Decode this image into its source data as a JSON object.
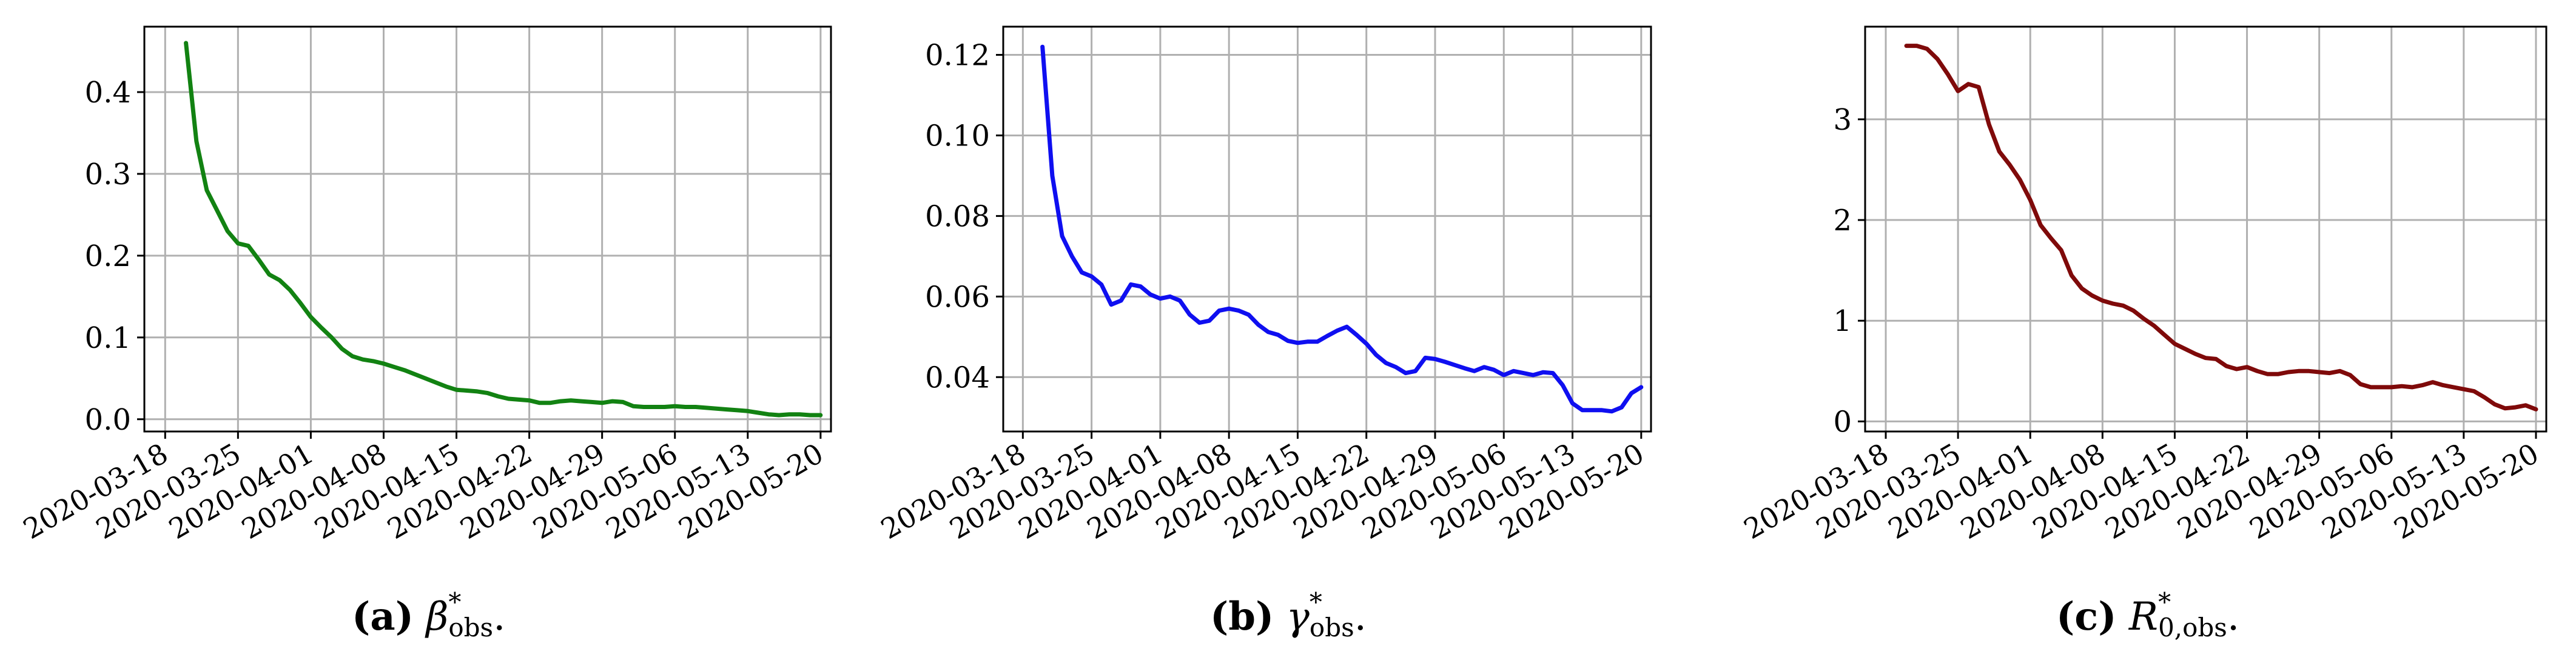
{
  "chart_data": [
    {
      "type": "line",
      "color": "#128212",
      "x_ticks": [
        "2020-03-18",
        "2020-03-25",
        "2020-04-01",
        "2020-04-08",
        "2020-04-15",
        "2020-04-22",
        "2020-04-29",
        "2020-05-06",
        "2020-05-13",
        "2020-05-20"
      ],
      "y_ticks": [
        "0.0",
        "0.1",
        "0.2",
        "0.3",
        "0.4"
      ],
      "ylim": [
        -0.015,
        0.48
      ],
      "xlim": [
        "2020-03-16",
        "2020-05-21"
      ],
      "grid": true,
      "caption": {
        "label": "(a)",
        "symbol": "β",
        "sup": "*",
        "sub": "obs",
        "end": "."
      },
      "series": [
        {
          "x": [
            "2020-03-20",
            "2020-03-21",
            "2020-03-22",
            "2020-03-23",
            "2020-03-24",
            "2020-03-25",
            "2020-03-26",
            "2020-03-27",
            "2020-03-28",
            "2020-03-29",
            "2020-03-30",
            "2020-03-31",
            "2020-04-01",
            "2020-04-02",
            "2020-04-03",
            "2020-04-04",
            "2020-04-05",
            "2020-04-06",
            "2020-04-07",
            "2020-04-08",
            "2020-04-09",
            "2020-04-10",
            "2020-04-11",
            "2020-04-12",
            "2020-04-13",
            "2020-04-14",
            "2020-04-15",
            "2020-04-16",
            "2020-04-17",
            "2020-04-18",
            "2020-04-19",
            "2020-04-20",
            "2020-04-21",
            "2020-04-22",
            "2020-04-23",
            "2020-04-24",
            "2020-04-25",
            "2020-04-26",
            "2020-04-27",
            "2020-04-28",
            "2020-04-29",
            "2020-04-30",
            "2020-05-01",
            "2020-05-02",
            "2020-05-03",
            "2020-05-04",
            "2020-05-05",
            "2020-05-06",
            "2020-05-07",
            "2020-05-08",
            "2020-05-09",
            "2020-05-10",
            "2020-05-11",
            "2020-05-12",
            "2020-05-13",
            "2020-05-14",
            "2020-05-15",
            "2020-05-16",
            "2020-05-17",
            "2020-05-18",
            "2020-05-19",
            "2020-05-20"
          ],
          "y": [
            0.46,
            0.34,
            0.28,
            0.255,
            0.23,
            0.215,
            0.212,
            0.195,
            0.177,
            0.17,
            0.158,
            0.142,
            0.125,
            0.112,
            0.1,
            0.086,
            0.077,
            0.073,
            0.071,
            0.068,
            0.064,
            0.06,
            0.055,
            0.05,
            0.045,
            0.04,
            0.036,
            0.035,
            0.034,
            0.032,
            0.028,
            0.025,
            0.024,
            0.023,
            0.02,
            0.02,
            0.022,
            0.023,
            0.022,
            0.021,
            0.02,
            0.022,
            0.021,
            0.016,
            0.015,
            0.015,
            0.015,
            0.016,
            0.015,
            0.015,
            0.014,
            0.013,
            0.012,
            0.011,
            0.01,
            0.008,
            0.006,
            0.005,
            0.006,
            0.006,
            0.005,
            0.005
          ]
        }
      ]
    },
    {
      "type": "line",
      "color": "#0f0ff0",
      "x_ticks": [
        "2020-03-18",
        "2020-03-25",
        "2020-04-01",
        "2020-04-08",
        "2020-04-15",
        "2020-04-22",
        "2020-04-29",
        "2020-05-06",
        "2020-05-13",
        "2020-05-20"
      ],
      "y_ticks": [
        "0.04",
        "0.06",
        "0.08",
        "0.10",
        "0.12"
      ],
      "ylim": [
        0.0265,
        0.127
      ],
      "xlim": [
        "2020-03-16",
        "2020-05-21"
      ],
      "grid": true,
      "caption": {
        "label": "(b)",
        "symbol": "γ",
        "sup": "*",
        "sub": "obs",
        "end": "."
      },
      "series": [
        {
          "x": [
            "2020-03-20",
            "2020-03-21",
            "2020-03-22",
            "2020-03-23",
            "2020-03-24",
            "2020-03-25",
            "2020-03-26",
            "2020-03-27",
            "2020-03-28",
            "2020-03-29",
            "2020-03-30",
            "2020-03-31",
            "2020-04-01",
            "2020-04-02",
            "2020-04-03",
            "2020-04-04",
            "2020-04-05",
            "2020-04-06",
            "2020-04-07",
            "2020-04-08",
            "2020-04-09",
            "2020-04-10",
            "2020-04-11",
            "2020-04-12",
            "2020-04-13",
            "2020-04-14",
            "2020-04-15",
            "2020-04-16",
            "2020-04-17",
            "2020-04-18",
            "2020-04-19",
            "2020-04-20",
            "2020-04-21",
            "2020-04-22",
            "2020-04-23",
            "2020-04-24",
            "2020-04-25",
            "2020-04-26",
            "2020-04-27",
            "2020-04-28",
            "2020-04-29",
            "2020-04-30",
            "2020-05-01",
            "2020-05-02",
            "2020-05-03",
            "2020-05-04",
            "2020-05-05",
            "2020-05-06",
            "2020-05-07",
            "2020-05-08",
            "2020-05-09",
            "2020-05-10",
            "2020-05-11",
            "2020-05-12",
            "2020-05-13",
            "2020-05-14",
            "2020-05-15",
            "2020-05-16",
            "2020-05-17",
            "2020-05-18",
            "2020-05-19",
            "2020-05-20"
          ],
          "y": [
            0.122,
            0.09,
            0.075,
            0.07,
            0.066,
            0.065,
            0.063,
            0.058,
            0.059,
            0.063,
            0.0625,
            0.0605,
            0.0595,
            0.06,
            0.059,
            0.0555,
            0.0535,
            0.054,
            0.0565,
            0.057,
            0.0565,
            0.0555,
            0.053,
            0.0512,
            0.0505,
            0.049,
            0.0485,
            0.0488,
            0.0488,
            0.0502,
            0.0515,
            0.0525,
            0.0505,
            0.0483,
            0.0455,
            0.0435,
            0.0425,
            0.041,
            0.0415,
            0.0448,
            0.0445,
            0.0438,
            0.043,
            0.0422,
            0.0415,
            0.0425,
            0.0418,
            0.0405,
            0.0415,
            0.041,
            0.0405,
            0.0412,
            0.041,
            0.038,
            0.0335,
            0.0318,
            0.0318,
            0.0318,
            0.0315,
            0.0325,
            0.036,
            0.0375
          ]
        }
      ]
    },
    {
      "type": "line",
      "color": "#7f0a0a",
      "x_ticks": [
        "2020-03-18",
        "2020-03-25",
        "2020-04-01",
        "2020-04-08",
        "2020-04-15",
        "2020-04-22",
        "2020-04-29",
        "2020-05-06",
        "2020-05-13",
        "2020-05-20"
      ],
      "y_ticks": [
        "0",
        "1",
        "2",
        "3"
      ],
      "ylim": [
        -0.1,
        3.92
      ],
      "xlim": [
        "2020-03-16",
        "2020-05-21"
      ],
      "grid": true,
      "caption": {
        "label": "(c)",
        "symbol": "R",
        "sup": "*",
        "sub": "0,obs",
        "end": "."
      },
      "series": [
        {
          "x": [
            "2020-03-20",
            "2020-03-21",
            "2020-03-22",
            "2020-03-23",
            "2020-03-24",
            "2020-03-25",
            "2020-03-26",
            "2020-03-27",
            "2020-03-28",
            "2020-03-29",
            "2020-03-30",
            "2020-03-31",
            "2020-04-01",
            "2020-04-02",
            "2020-04-03",
            "2020-04-04",
            "2020-04-05",
            "2020-04-06",
            "2020-04-07",
            "2020-04-08",
            "2020-04-09",
            "2020-04-10",
            "2020-04-11",
            "2020-04-12",
            "2020-04-13",
            "2020-04-14",
            "2020-04-15",
            "2020-04-16",
            "2020-04-17",
            "2020-04-18",
            "2020-04-19",
            "2020-04-20",
            "2020-04-21",
            "2020-04-22",
            "2020-04-23",
            "2020-04-24",
            "2020-04-25",
            "2020-04-26",
            "2020-04-27",
            "2020-04-28",
            "2020-04-29",
            "2020-04-30",
            "2020-05-01",
            "2020-05-02",
            "2020-05-03",
            "2020-05-04",
            "2020-05-05",
            "2020-05-06",
            "2020-05-07",
            "2020-05-08",
            "2020-05-09",
            "2020-05-10",
            "2020-05-11",
            "2020-05-12",
            "2020-05-13",
            "2020-05-14",
            "2020-05-15",
            "2020-05-16",
            "2020-05-17",
            "2020-05-18",
            "2020-05-19",
            "2020-05-20"
          ],
          "y": [
            3.73,
            3.73,
            3.7,
            3.6,
            3.45,
            3.28,
            3.35,
            3.32,
            2.95,
            2.68,
            2.55,
            2.4,
            2.2,
            1.95,
            1.82,
            1.7,
            1.45,
            1.32,
            1.25,
            1.2,
            1.17,
            1.15,
            1.1,
            1.02,
            0.95,
            0.86,
            0.77,
            0.72,
            0.67,
            0.63,
            0.62,
            0.55,
            0.52,
            0.54,
            0.5,
            0.47,
            0.47,
            0.49,
            0.5,
            0.5,
            0.49,
            0.48,
            0.5,
            0.46,
            0.37,
            0.34,
            0.34,
            0.34,
            0.35,
            0.34,
            0.36,
            0.39,
            0.36,
            0.34,
            0.32,
            0.3,
            0.24,
            0.17,
            0.13,
            0.14,
            0.16,
            0.12
          ]
        }
      ]
    }
  ]
}
